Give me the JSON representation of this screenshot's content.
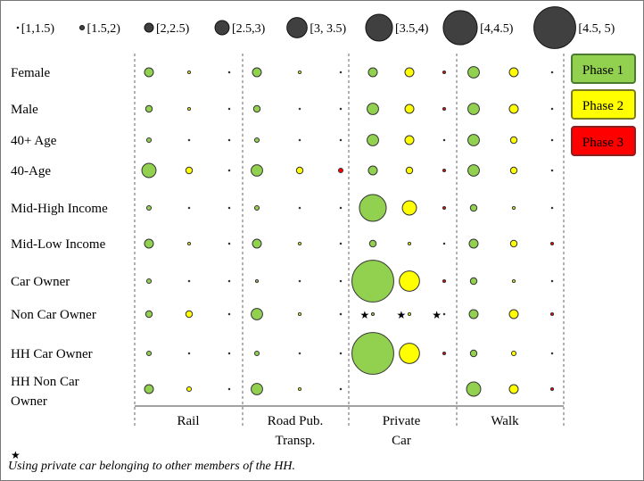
{
  "chart_data": {
    "type": "scatter",
    "size_legend": [
      {
        "label": "[1,1.5)",
        "value": 1.25
      },
      {
        "label": "[1.5,2)",
        "value": 1.75
      },
      {
        "label": "[2,2.5)",
        "value": 2.25
      },
      {
        "label": "[2.5,3)",
        "value": 2.75
      },
      {
        "label": "[3, 3.5)",
        "value": 3.25
      },
      {
        "label": "[3.5,4)",
        "value": 3.75
      },
      {
        "label": "[4,4.5)",
        "value": 4.25
      },
      {
        "label": "[4.5, 5)",
        "value": 4.75
      }
    ],
    "rows": [
      "Female",
      "Male",
      "40+ Age",
      "40-Age",
      "Mid-High Income",
      "Mid-Low Income",
      "Car Owner",
      "Non Car Owner",
      "HH Car Owner",
      "HH Non Car Owner"
    ],
    "columns": [
      "Rail",
      "Road Pub. Transp.",
      "Private Car",
      "Walk"
    ],
    "phases": [
      {
        "name": "Phase 1",
        "color": "#92d050"
      },
      {
        "name": "Phase 2",
        "color": "#ffff00"
      },
      {
        "name": "Phase 3",
        "color": "#ff0000"
      }
    ],
    "values": [
      [
        [
          2.25,
          1.5,
          1.25
        ],
        [
          2.25,
          1.5,
          1.25
        ],
        [
          2.25,
          2.25,
          1.5
        ],
        [
          2.5,
          2.25,
          1.25
        ]
      ],
      [
        [
          2.0,
          1.5,
          1.25
        ],
        [
          2.0,
          1.25,
          1.25
        ],
        [
          2.5,
          2.25,
          1.5
        ],
        [
          2.5,
          2.25,
          1.25
        ]
      ],
      [
        [
          1.75,
          1.25,
          1.25
        ],
        [
          1.75,
          1.25,
          1.25
        ],
        [
          2.5,
          2.25,
          1.25
        ],
        [
          2.5,
          2.0,
          1.25
        ]
      ],
      [
        [
          2.75,
          2.0,
          1.25
        ],
        [
          2.5,
          2.0,
          1.75
        ],
        [
          2.25,
          2.0,
          1.5
        ],
        [
          2.5,
          2.0,
          1.25
        ]
      ],
      [
        [
          1.75,
          1.25,
          1.25
        ],
        [
          1.75,
          1.25,
          1.25
        ],
        [
          3.75,
          2.75,
          1.5
        ],
        [
          2.0,
          1.5,
          1.25
        ]
      ],
      [
        [
          2.25,
          1.5,
          1.25
        ],
        [
          2.25,
          1.5,
          1.25
        ],
        [
          2.0,
          1.5,
          1.25
        ],
        [
          2.25,
          2.0,
          1.5
        ]
      ],
      [
        [
          1.75,
          1.25,
          1.25
        ],
        [
          1.5,
          1.25,
          1.25
        ],
        [
          4.75,
          3.25,
          1.5
        ],
        [
          2.0,
          1.5,
          1.25
        ]
      ],
      [
        [
          2.0,
          2.0,
          1.25
        ],
        [
          2.5,
          1.5,
          1.25
        ],
        [
          1.5,
          1.5,
          1.25
        ],
        [
          2.25,
          2.25,
          1.5
        ]
      ],
      [
        [
          1.75,
          1.25,
          1.25
        ],
        [
          1.75,
          1.25,
          1.25
        ],
        [
          4.75,
          3.25,
          1.5
        ],
        [
          2.0,
          1.75,
          1.25
        ]
      ],
      [
        [
          2.25,
          1.75,
          1.25
        ],
        [
          2.5,
          1.5,
          1.25
        ],
        [
          null,
          null,
          null
        ],
        [
          2.75,
          2.25,
          1.5
        ]
      ]
    ],
    "starred_cells": [
      {
        "row": "Non Car Owner",
        "column": "Private Car"
      }
    ],
    "star_symbol": "★",
    "footnote_symbol": "★",
    "footnote_text": "Using private car belonging to other members of the HH."
  }
}
